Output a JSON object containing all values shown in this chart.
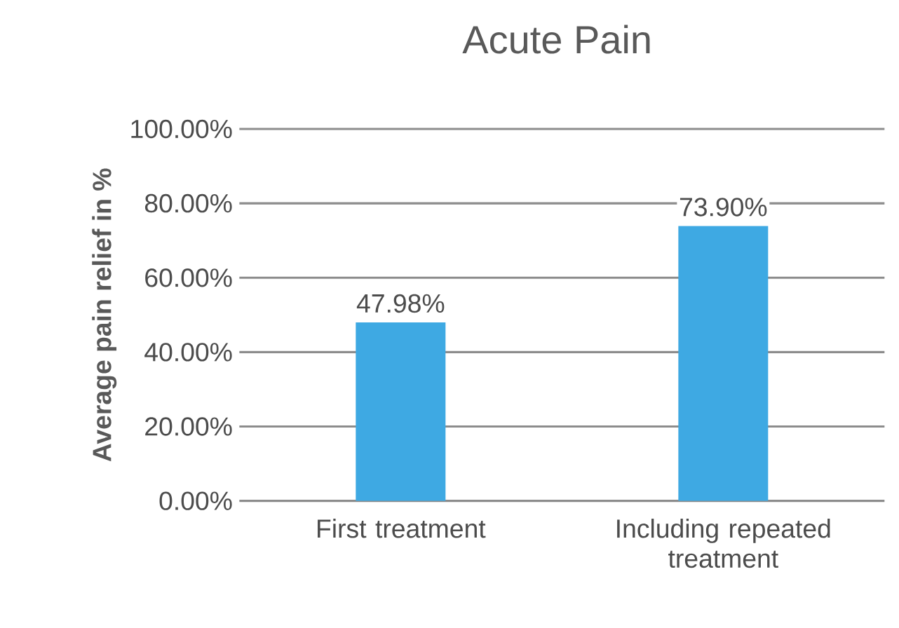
{
  "chart_data": {
    "type": "bar",
    "title": "Acute Pain",
    "ylabel": "Average pain relief in %",
    "categories": [
      "First treatment",
      "Including repeated treatment"
    ],
    "values": [
      47.98,
      73.9
    ],
    "value_labels": [
      "47.98%",
      "73.90%"
    ],
    "color": "#3ea9e3",
    "ylim": [
      0,
      100
    ],
    "yticks": [
      {
        "value": 0,
        "label": "0.00%"
      },
      {
        "value": 20,
        "label": "20.00%"
      },
      {
        "value": 40,
        "label": "40.00%"
      },
      {
        "value": 60,
        "label": "60.00%"
      },
      {
        "value": 80,
        "label": "80.00%"
      },
      {
        "value": 100,
        "label": "100.00%"
      }
    ],
    "grid": "y"
  }
}
